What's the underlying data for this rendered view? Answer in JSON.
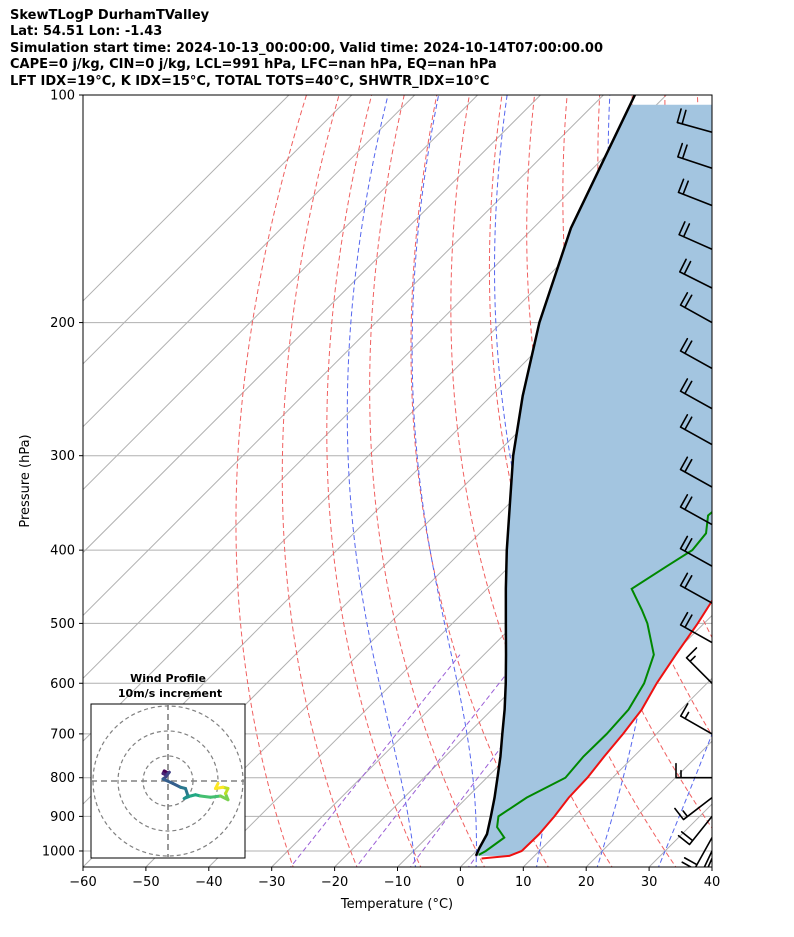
{
  "header": {
    "lines": [
      "SkewTLogP DurhamTValley",
      "Lat: 54.51   Lon: -1.43",
      "Simulation start time: 2024-10-13_00:00:00, Valid time: 2024-10-14T07:00:00.00",
      "CAPE=0 j/kg, CIN=0 j/kg, LCL=991 hPa, LFC=nan hPa, EQ=nan hPa",
      "LFT IDX=19$^\\circ$C, K IDX=15$^\\circ$C, TOTAL TOTS=40$^\\circ$C, SHWTR_IDX=10$^\\circ$C"
    ]
  },
  "chart_data": {
    "type": "skewt",
    "xlabel": "Temperature ($^\\circ$C)",
    "ylabel": "Pressure (hPa)",
    "xlim": [
      -60,
      40
    ],
    "ylim": [
      1050,
      100
    ],
    "y_scale": "log",
    "x_ticks": [
      -60,
      -50,
      -40,
      -30,
      -20,
      -10,
      0,
      10,
      20,
      30,
      40
    ],
    "y_ticks": [
      100,
      200,
      300,
      400,
      500,
      600,
      700,
      800,
      900,
      1000
    ],
    "grid": true,
    "skew_deg": 45,
    "dry_adiabats_C": [
      -30,
      -20,
      -10,
      0,
      10,
      20,
      30,
      40,
      50,
      60,
      70,
      80,
      90,
      100
    ],
    "moist_adiabats_C": [
      -10,
      0,
      10,
      20,
      30
    ],
    "mixing_ratio_gkg": [
      0.4,
      1,
      2,
      4
    ],
    "temperature": {
      "color": "#ee1111",
      "points": [
        [
          1023,
          2
        ],
        [
          1015,
          6
        ],
        [
          1000,
          7.2
        ],
        [
          950,
          7.3
        ],
        [
          900,
          6.9
        ],
        [
          850,
          6.2
        ],
        [
          800,
          6
        ],
        [
          750,
          5.3
        ],
        [
          700,
          4.7
        ],
        [
          650,
          3.8
        ],
        [
          600,
          2
        ],
        [
          550,
          0.5
        ],
        [
          500,
          -1
        ],
        [
          450,
          -3
        ],
        [
          400,
          -6.5
        ],
        [
          350,
          -10
        ],
        [
          300,
          -13.3
        ],
        [
          290,
          -13.3
        ],
        [
          270,
          -11
        ],
        [
          250,
          -8
        ],
        [
          240,
          -6.5
        ],
        [
          220,
          -3.5
        ],
        [
          200,
          -0.5
        ],
        [
          190,
          1.5
        ],
        [
          180,
          2.7
        ],
        [
          160,
          4.3
        ],
        [
          140,
          5.8
        ],
        [
          120,
          7.3
        ],
        [
          108,
          9.5
        ],
        [
          100,
          11.7
        ]
      ]
    },
    "dewpoint": {
      "color": "#008800",
      "points": [
        [
          1012,
          1
        ],
        [
          1000,
          1.5
        ],
        [
          960,
          2.3
        ],
        [
          930,
          -0.5
        ],
        [
          900,
          -2
        ],
        [
          850,
          -0.5
        ],
        [
          800,
          2.5
        ],
        [
          750,
          2
        ],
        [
          700,
          2.1
        ],
        [
          650,
          1.7
        ],
        [
          600,
          0
        ],
        [
          550,
          -3
        ],
        [
          500,
          -9
        ],
        [
          480,
          -12
        ],
        [
          450,
          -17
        ],
        [
          420,
          -15
        ],
        [
          400,
          -13.5
        ],
        [
          380,
          -14
        ],
        [
          360,
          -16.5
        ],
        [
          340,
          -16
        ],
        [
          320,
          -17
        ],
        [
          300,
          -18.5
        ],
        [
          280,
          -19
        ],
        [
          260,
          -19
        ],
        [
          240,
          -21.5
        ],
        [
          220,
          -25.5
        ],
        [
          210,
          -30.5
        ],
        [
          200,
          -29.5
        ],
        [
          190,
          -27
        ],
        [
          180,
          -26
        ],
        [
          170,
          -26
        ],
        [
          150,
          -23
        ],
        [
          130,
          -19.5
        ],
        [
          115,
          -16.5
        ],
        [
          100,
          -13.2
        ]
      ]
    },
    "parcel": {
      "color": "#000000",
      "points": [
        [
          1015,
          0.7
        ],
        [
          991,
          0
        ],
        [
          950,
          -1
        ],
        [
          900,
          -3.2
        ],
        [
          850,
          -5.6
        ],
        [
          800,
          -8.3
        ],
        [
          750,
          -11.2
        ],
        [
          700,
          -14.5
        ],
        [
          650,
          -18
        ],
        [
          600,
          -22
        ],
        [
          550,
          -26.5
        ],
        [
          500,
          -31.5
        ],
        [
          450,
          -37
        ],
        [
          400,
          -43
        ],
        [
          350,
          -49.5
        ],
        [
          300,
          -57
        ],
        [
          250,
          -65
        ],
        [
          200,
          -74
        ],
        [
          150,
          -84
        ],
        [
          100,
          -95
        ]
      ]
    },
    "cin_fill_color": "#a3c5e0",
    "wind_barbs": [
      {
        "p": 1023,
        "u_kt": 8,
        "v_kt": 18
      },
      {
        "p": 1000,
        "u_kt": 9,
        "v_kt": 19
      },
      {
        "p": 960,
        "u_kt": 10,
        "v_kt": 18
      },
      {
        "p": 900,
        "u_kt": 12,
        "v_kt": 15
      },
      {
        "p": 850,
        "u_kt": 13,
        "v_kt": 10
      },
      {
        "p": 800,
        "u_kt": 16,
        "v_kt": 0
      },
      {
        "p": 700,
        "u_kt": 14,
        "v_kt": -8
      },
      {
        "p": 600,
        "u_kt": 10,
        "v_kt": -10
      },
      {
        "p": 530,
        "u_kt": 16,
        "v_kt": -9
      },
      {
        "p": 470,
        "u_kt": 18,
        "v_kt": -10
      },
      {
        "p": 420,
        "u_kt": 18,
        "v_kt": -10
      },
      {
        "p": 370,
        "u_kt": 18,
        "v_kt": -10
      },
      {
        "p": 330,
        "u_kt": 18,
        "v_kt": -10
      },
      {
        "p": 290,
        "u_kt": 18,
        "v_kt": -10
      },
      {
        "p": 260,
        "u_kt": 18,
        "v_kt": -10
      },
      {
        "p": 230,
        "u_kt": 18,
        "v_kt": -10
      },
      {
        "p": 200,
        "u_kt": 18,
        "v_kt": -10
      },
      {
        "p": 180,
        "u_kt": 18,
        "v_kt": -9
      },
      {
        "p": 160,
        "u_kt": 18,
        "v_kt": -8
      },
      {
        "p": 140,
        "u_kt": 18,
        "v_kt": -7
      },
      {
        "p": 125,
        "u_kt": 18,
        "v_kt": -6
      },
      {
        "p": 112,
        "u_kt": 18,
        "v_kt": -5
      }
    ],
    "hodograph": {
      "title": "Wind Profile",
      "subtitle": "10m/s increment",
      "ring_step_ms": 10,
      "rings": 3,
      "points": [
        [
          -0.5,
          3.5
        ],
        [
          -1.5,
          4
        ],
        [
          -2,
          3
        ],
        [
          -1,
          2.5
        ],
        [
          0.5,
          3.5
        ],
        [
          -1,
          1.5
        ],
        [
          -2,
          0.8
        ],
        [
          2,
          -1
        ],
        [
          5,
          -2.5
        ],
        [
          7,
          -3
        ],
        [
          8,
          -6
        ],
        [
          6.5,
          -7
        ],
        [
          9,
          -6
        ],
        [
          11,
          -5.5
        ],
        [
          13,
          -6
        ],
        [
          17,
          -6.5
        ],
        [
          21,
          -6
        ],
        [
          24,
          -7.5
        ],
        [
          23,
          -5
        ],
        [
          24,
          -3
        ],
        [
          22,
          -2.5
        ],
        [
          19,
          -3
        ],
        [
          20,
          -1
        ]
      ]
    }
  }
}
